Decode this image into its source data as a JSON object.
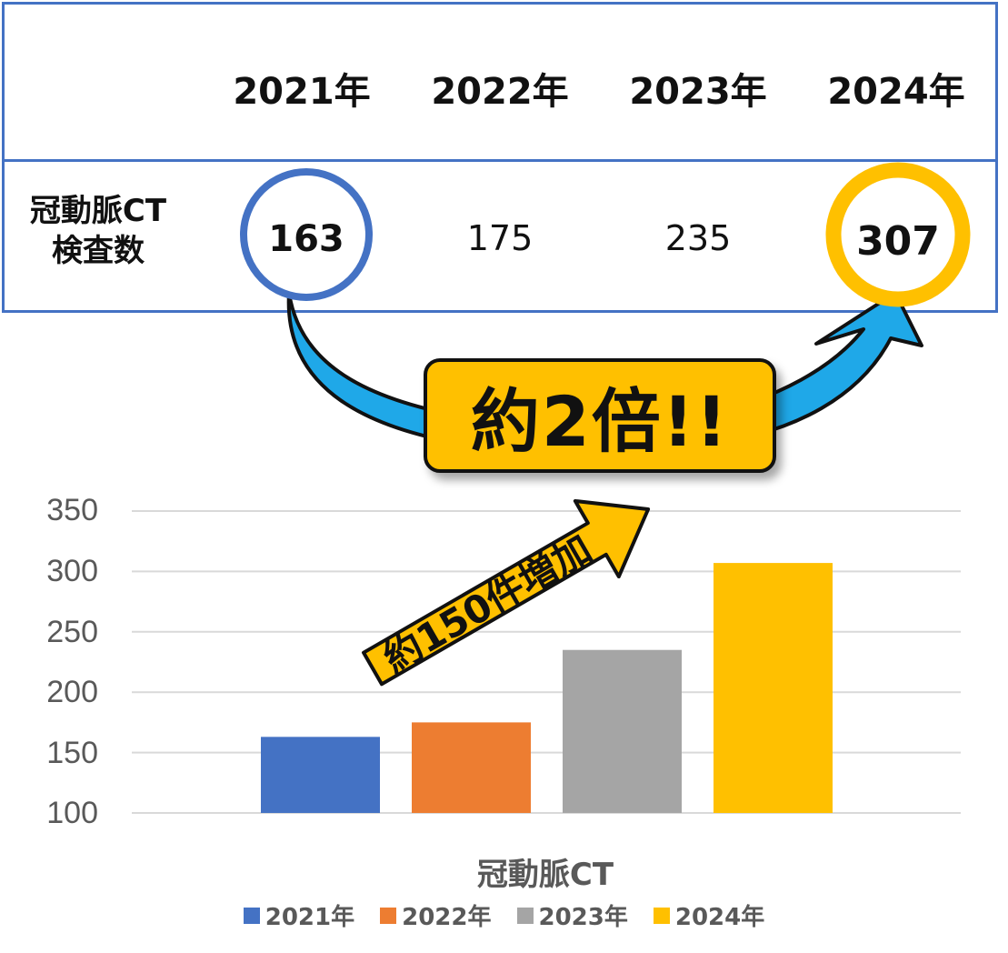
{
  "table": {
    "headers": [
      "2021年",
      "2022年",
      "2023年",
      "2024年"
    ],
    "row_label_line1": "冠動脈CT",
    "row_label_line2": "検査数",
    "values": [
      "163",
      "175",
      "235",
      "307"
    ]
  },
  "callout": {
    "text": "約2倍!!"
  },
  "chart_arrow": {
    "text": "約150件増加"
  },
  "colors": {
    "table_border": "#4472c4",
    "callout_fill": "#ffc000",
    "arrow_blue": "#1fa8e8",
    "highlight_2021": "#4472c4",
    "highlight_2024": "#ffc000"
  },
  "chart_data": {
    "type": "bar",
    "xlabel": "冠動脈CT",
    "categories": [
      "冠動脈CT"
    ],
    "series": [
      {
        "name": "2021年",
        "values": [
          163
        ],
        "color": "#4472c4"
      },
      {
        "name": "2022年",
        "values": [
          175
        ],
        "color": "#ed7d31"
      },
      {
        "name": "2023年",
        "values": [
          235
        ],
        "color": "#a5a5a5"
      },
      {
        "name": "2024年",
        "values": [
          307
        ],
        "color": "#ffc000"
      }
    ],
    "ylim": [
      100,
      350
    ],
    "yticks": [
      "100",
      "150",
      "200",
      "250",
      "300",
      "350"
    ],
    "grid": true,
    "legend": "bottom"
  }
}
